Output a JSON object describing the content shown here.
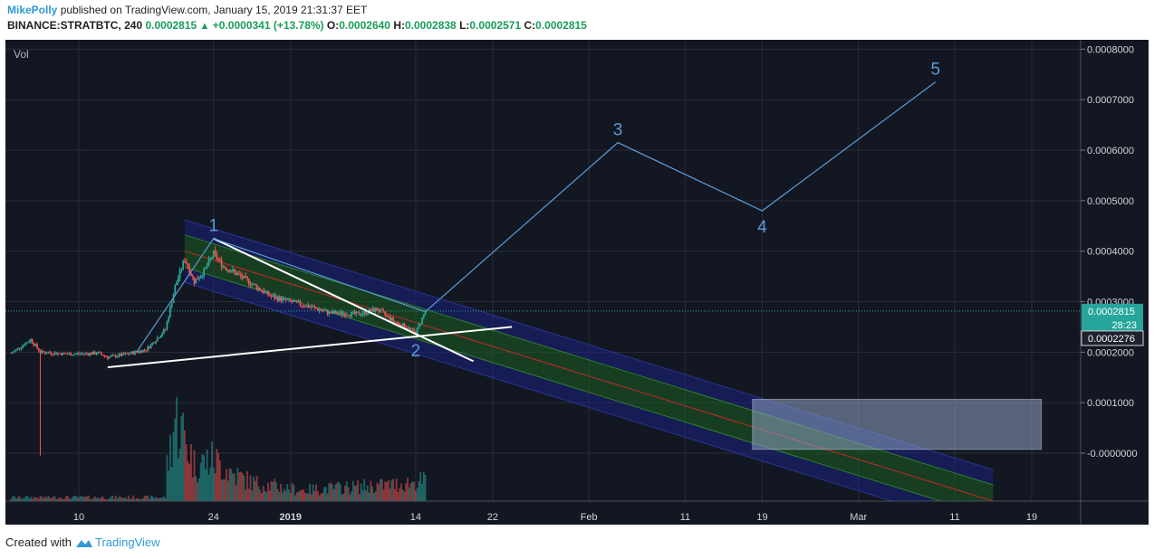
{
  "header": {
    "author": "MikePolly",
    "published_text": "published on TradingView.com, January 15, 2019 21:31:37 EET",
    "symbol": "BINANCE:STRATBTC, 240",
    "price": "0.0002815",
    "change": "+0.0000341 (+13.78%)",
    "o_label": "O:",
    "o_value": "0.0002640",
    "h_label": "H:",
    "h_value": "0.0002838",
    "l_label": "L:",
    "l_value": "0.0002571",
    "c_label": "C:",
    "c_value": "0.0002815"
  },
  "footer": {
    "created_with": "Created with",
    "brand": "TradingView"
  },
  "colors": {
    "background": "#131722",
    "up": "#26a69a",
    "down": "#ef5350",
    "wave": "#5b9bd5",
    "trendline": "#ffffff",
    "channel_blue": "#1a237e",
    "channel_green": "#1b5e20",
    "box": "#8ea3c2"
  },
  "chart_data": {
    "type": "candlestick",
    "symbol": "BINANCE:STRATBTC",
    "interval": "240",
    "pane_label": "Vol",
    "ylim": [
      -9.5e-05,
      0.000815
    ],
    "y_ticks": [
      {
        "v": 0.0008,
        "label": "0.0008000"
      },
      {
        "v": 0.0007,
        "label": "0.0007000"
      },
      {
        "v": 0.0006,
        "label": "0.0006000"
      },
      {
        "v": 0.0005,
        "label": "0.0005000"
      },
      {
        "v": 0.0004,
        "label": "0.0004000"
      },
      {
        "v": 0.0003,
        "label": "0.0003000"
      },
      {
        "v": 0.0002,
        "label": "0.0002000"
      },
      {
        "v": 0.0001,
        "label": "0.0001000"
      },
      {
        "v": 0.0,
        "label": "-0.0000000"
      }
    ],
    "x_ticks": [
      {
        "date": "2018-12-10",
        "label": "10",
        "bold": false
      },
      {
        "date": "2018-12-24",
        "label": "24",
        "bold": false
      },
      {
        "date": "2019-01-01",
        "label": "2019",
        "bold": true
      },
      {
        "date": "2019-01-14",
        "label": "14",
        "bold": false
      },
      {
        "date": "2019-01-22",
        "label": "22",
        "bold": false
      },
      {
        "date": "2019-02-01",
        "label": "Feb",
        "bold": false
      },
      {
        "date": "2019-02-11",
        "label": "11",
        "bold": false
      },
      {
        "date": "2019-02-19",
        "label": "19",
        "bold": false
      },
      {
        "date": "2019-03-01",
        "label": "Mar",
        "bold": false
      },
      {
        "date": "2019-03-11",
        "label": "11",
        "bold": false
      },
      {
        "date": "2019-03-19",
        "label": "19",
        "bold": false
      }
    ],
    "price_series": [
      {
        "date": "2018-12-03",
        "close": 0.000198
      },
      {
        "date": "2018-12-05",
        "close": 0.000225
      },
      {
        "date": "2018-12-06",
        "close": 0.0002
      },
      {
        "date": "2018-12-09",
        "close": 0.000196
      },
      {
        "date": "2018-12-12",
        "close": 0.000198
      },
      {
        "date": "2018-12-13",
        "close": 0.00019
      },
      {
        "date": "2018-12-15",
        "close": 0.000196
      },
      {
        "date": "2018-12-17",
        "close": 0.000205
      },
      {
        "date": "2018-12-19",
        "close": 0.000245
      },
      {
        "date": "2018-12-20",
        "close": 0.00033
      },
      {
        "date": "2018-12-21",
        "close": 0.000385
      },
      {
        "date": "2018-12-22",
        "close": 0.00034
      },
      {
        "date": "2018-12-23",
        "close": 0.00036
      },
      {
        "date": "2018-12-24",
        "close": 0.000395
      },
      {
        "date": "2018-12-25",
        "close": 0.00037
      },
      {
        "date": "2018-12-26",
        "close": 0.00036
      },
      {
        "date": "2018-12-28",
        "close": 0.000335
      },
      {
        "date": "2018-12-30",
        "close": 0.00031
      },
      {
        "date": "2019-01-01",
        "close": 0.0003
      },
      {
        "date": "2019-01-03",
        "close": 0.00029
      },
      {
        "date": "2019-01-05",
        "close": 0.000278
      },
      {
        "date": "2019-01-08",
        "close": 0.000275
      },
      {
        "date": "2019-01-10",
        "close": 0.000285
      },
      {
        "date": "2019-01-12",
        "close": 0.000258
      },
      {
        "date": "2019-01-13",
        "close": 0.00025
      },
      {
        "date": "2019-01-14",
        "close": 0.000238
      },
      {
        "date": "2019-01-15",
        "close": 0.0002815
      }
    ],
    "volume_series": [
      {
        "date": "2018-12-19",
        "v": 0.25
      },
      {
        "date": "2018-12-20",
        "v": 0.9
      },
      {
        "date": "2018-12-21",
        "v": 0.7
      },
      {
        "date": "2018-12-22",
        "v": 0.4
      },
      {
        "date": "2018-12-24",
        "v": 0.45
      },
      {
        "date": "2018-12-26",
        "v": 0.3
      },
      {
        "date": "2018-12-28",
        "v": 0.2
      },
      {
        "date": "2019-01-02",
        "v": 0.12
      },
      {
        "date": "2019-01-12",
        "v": 0.18
      },
      {
        "date": "2019-01-15",
        "v": 0.22
      }
    ],
    "wave_labels": [
      {
        "label": "1",
        "date": "2018-12-24",
        "price": 0.000425
      },
      {
        "label": "2",
        "date": "2019-01-14",
        "price": 0.000235
      },
      {
        "label": "3",
        "date": "2019-02-04",
        "price": 0.000615
      },
      {
        "label": "4",
        "date": "2019-02-19",
        "price": 0.00048
      },
      {
        "label": "5",
        "date": "2019-03-09",
        "price": 0.000735
      }
    ],
    "wave_path": [
      {
        "date": "2018-12-16",
        "price": 0.0002
      },
      {
        "date": "2018-12-24",
        "price": 0.000425
      },
      {
        "date": "2019-01-15",
        "price": 0.00028
      },
      {
        "date": "2019-02-04",
        "price": 0.000615
      },
      {
        "date": "2019-02-19",
        "price": 0.00048
      },
      {
        "date": "2019-03-09",
        "price": 0.000735
      }
    ],
    "trendlines": [
      {
        "from": {
          "date": "2018-12-13",
          "price": 0.00017
        },
        "to": {
          "date": "2019-01-24",
          "price": 0.00025
        }
      },
      {
        "from": {
          "date": "2018-12-24",
          "price": 0.000425
        },
        "to": {
          "date": "2019-01-20",
          "price": 0.000182
        }
      }
    ],
    "regression_channel": {
      "start": {
        "date": "2018-12-21",
        "price": 0.0004
      },
      "end": {
        "date": "2019-03-15",
        "price": -9.5e-05
      },
      "inner_half_width": 3.2e-05,
      "outer_half_width": 6.2e-05
    },
    "target_box": {
      "from": {
        "date": "2019-02-18",
        "price": 0.0001065
      },
      "to": {
        "date": "2019-03-20",
        "price": 7.5e-06
      }
    },
    "price_badges": [
      {
        "value": "0.0002815",
        "price": 0.0002815,
        "style": "last"
      },
      {
        "value": "28:23",
        "price": 0.0002545,
        "style": "timer"
      },
      {
        "value": "0.0002276",
        "price": 0.0002276,
        "style": "dark"
      }
    ]
  }
}
